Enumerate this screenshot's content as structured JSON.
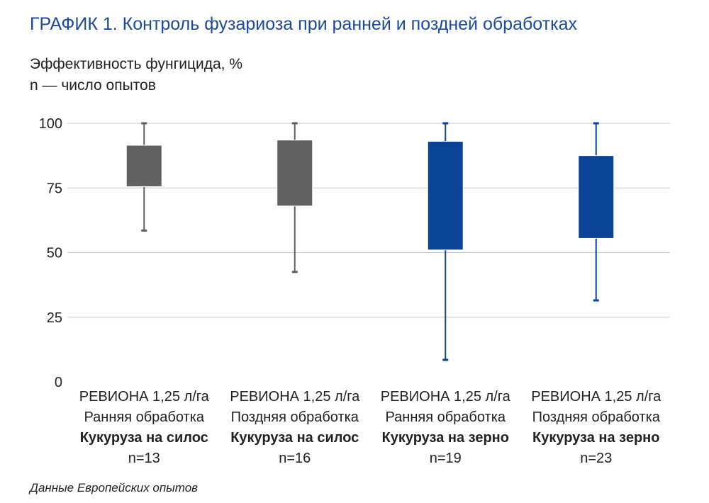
{
  "chart_data": {
    "type": "boxplot",
    "title": "ГРАФИК 1. Контроль фузариоза при ранней и поздней обработках",
    "ylabel": "Эффективность фунгицида, %",
    "ylabel2": "n — число опытов",
    "ylim": [
      0,
      100
    ],
    "yticks": [
      "100",
      "75",
      "50",
      "25",
      "0"
    ],
    "ytick_values": [
      100,
      75,
      50,
      25,
      0
    ],
    "grid": true,
    "colors": {
      "gray": "#606060",
      "blue": "#0b4397",
      "grid": "#c8c8c8"
    },
    "categories": [
      {
        "product": "РЕВИОНА 1,25 л/га",
        "timing": "Ранняя обработка",
        "crop": "Кукуруза на силос",
        "n": "n=13",
        "min": 58.5,
        "q1": 75.5,
        "q3": 91.5,
        "max": 100,
        "color": "#606060"
      },
      {
        "product": "РЕВИОНА 1,25 л/га",
        "timing": "Поздняя обработка",
        "crop": "Кукуруза на силос",
        "n": "n=16",
        "min": 42.5,
        "q1": 68,
        "q3": 93.5,
        "max": 100,
        "color": "#606060"
      },
      {
        "product": "РЕВИОНА 1,25 л/га",
        "timing": "Ранняя обработка",
        "crop": "Кукуруза на зерно",
        "n": "n=19",
        "min": 8.5,
        "q1": 51,
        "q3": 93,
        "max": 100,
        "color": "#0b4397"
      },
      {
        "product": "РЕВИОНА 1,25 л/га",
        "timing": "Поздняя обработка",
        "crop": "Кукуруза на зерно",
        "n": "n=23",
        "min": 31.5,
        "q1": 55.5,
        "q3": 87.5,
        "max": 100,
        "color": "#0b4397"
      }
    ]
  },
  "footer": {
    "source": "Данные Европейских опытов"
  }
}
